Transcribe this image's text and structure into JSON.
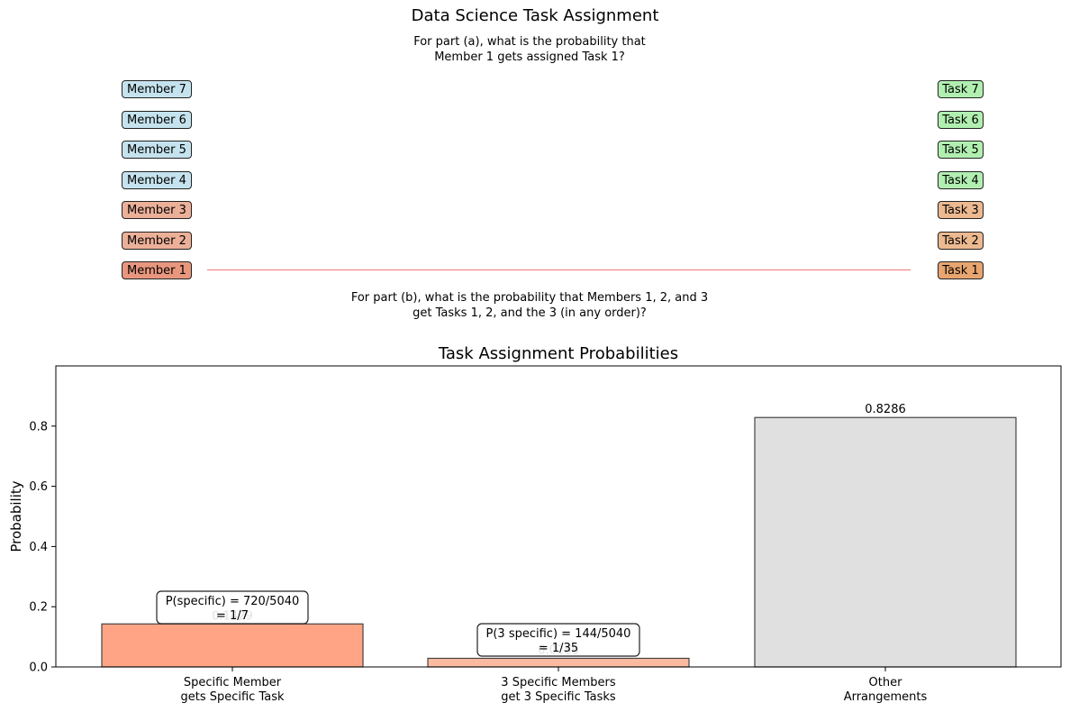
{
  "top": {
    "title": "Data Science Task Assignment",
    "question_a": "For part (a), what is the probability that\nMember 1 gets assigned Task 1?",
    "question_b": "For part (b), what is the probability that Members 1, 2, and 3\nget Tasks 1, 2, and the 3 (in any order)?",
    "members": [
      "Member 1",
      "Member 2",
      "Member 3",
      "Member 4",
      "Member 5",
      "Member 6",
      "Member 7"
    ],
    "tasks": [
      "Task 1",
      "Task 2",
      "Task 3",
      "Task 4",
      "Task 5",
      "Task 6",
      "Task 7"
    ],
    "member_colors": [
      "#e8977e",
      "#ecb099",
      "#ecb099",
      "#c5e3ee",
      "#c5e3ee",
      "#c5e3ee",
      "#c5e3ee"
    ],
    "task_colors": [
      "#e8a56f",
      "#ecb990",
      "#ecb990",
      "#b1efb1",
      "#b1efb1",
      "#b1efb1",
      "#b1efb1"
    ],
    "link_color": "#f07a78"
  },
  "chart_data": {
    "type": "bar",
    "title": "Task Assignment Probabilities",
    "xlabel": "",
    "ylabel": "Probability",
    "ylim": [
      0,
      1
    ],
    "yticks": [
      "0.0",
      "0.2",
      "0.4",
      "0.6",
      "0.8"
    ],
    "categories": [
      "Specific Member\ngets Specific Task",
      "3 Specific Members\nget 3 Specific Tasks",
      "Other\nArrangements"
    ],
    "values": [
      0.1429,
      0.0286,
      0.8286
    ],
    "value_labels": [
      "0.1429",
      "0.0286",
      "0.8286"
    ],
    "colors": [
      "#ffa585",
      "#fcbba1",
      "#e0e0e0"
    ],
    "annotations": [
      "P(specific) = 720/5040\n= 1/7",
      "P(3 specific) = 144/5040\n= 1/35"
    ]
  }
}
